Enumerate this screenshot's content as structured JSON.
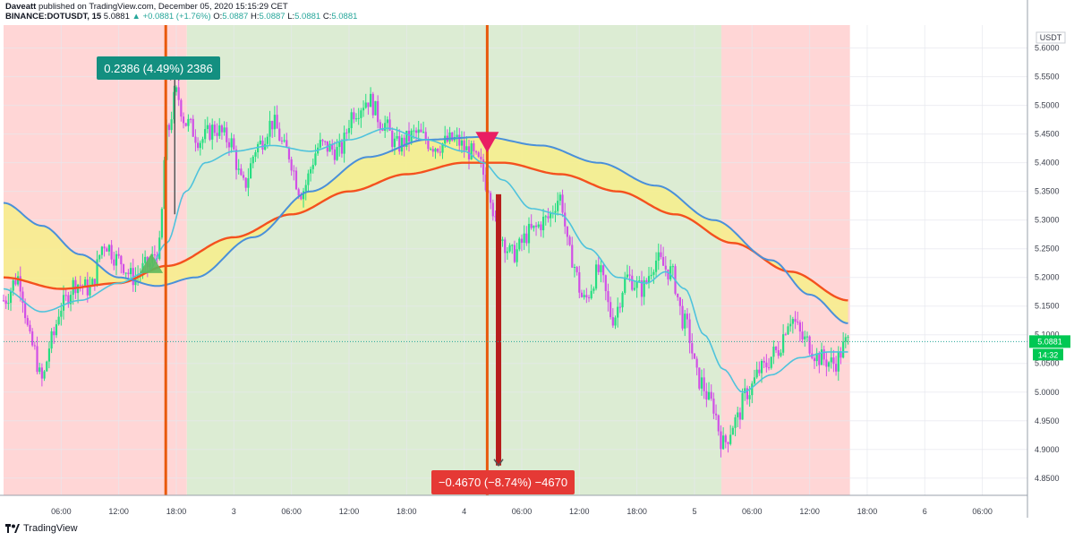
{
  "header": {
    "line1_prefix": "Daveatt",
    "line1_rest": " published on TradingView.com, December 05, 2020 15:15:29 CET",
    "symbol": "BINANCE:DOTUSDT, 15",
    "last": "5.0881",
    "change": "▲ +0.0881 (+1.76%)",
    "o_label": "O:",
    "o": "5.0887",
    "h_label": "H:",
    "h": "5.0887",
    "l_label": "L:",
    "l": "5.0881",
    "c_label": "C:",
    "c": "5.0881"
  },
  "footer": {
    "brand": "TradingView"
  },
  "colors": {
    "bull": "#26de81",
    "bear": "#d14fe6",
    "red_zone": "#ffd6d6",
    "green_zone": "#dcecd3",
    "ribbon_fill": "#f7ee8a",
    "ma_fast": "#4fc3dc",
    "ma_slow": "#f4511e",
    "ribbon_blue": "#4a90d9",
    "vline": "#e8590c",
    "long_box": "#138f80",
    "short_box": "#e53935"
  },
  "chart_data": {
    "type": "candlestick",
    "y_axis_unit": "USDT",
    "ylim": [
      4.82,
      5.64
    ],
    "price_ticks": [
      "5.6000",
      "5.5500",
      "5.5000",
      "5.4500",
      "5.4000",
      "5.3500",
      "5.3000",
      "5.2500",
      "5.2000",
      "5.1500",
      "5.1000",
      "5.0500",
      "5.0000",
      "4.9500",
      "4.9000",
      "4.8500"
    ],
    "price_tick_values": [
      5.6,
      5.55,
      5.5,
      5.45,
      5.4,
      5.35,
      5.3,
      5.25,
      5.2,
      5.15,
      5.1,
      5.05,
      5.0,
      4.95,
      4.9,
      4.85
    ],
    "time_ticks": [
      "06:00",
      "12:00",
      "18:00",
      "3",
      "06:00",
      "12:00",
      "18:00",
      "4",
      "06:00",
      "12:00",
      "18:00",
      "5",
      "06:00",
      "12:00",
      "18:00",
      "6",
      "06:00"
    ],
    "time_tick_hours": [
      6,
      12,
      18,
      24,
      30,
      36,
      42,
      48,
      54,
      60,
      66,
      72,
      78,
      84,
      90,
      96,
      102
    ],
    "x_start_hour": 0.0,
    "last_price_label": "5.0881",
    "countdown_label": "14:32",
    "zones": [
      {
        "kind": "red",
        "from_h": 0.0,
        "to_h": 19.1
      },
      {
        "kind": "green",
        "from_h": 19.1,
        "to_h": 74.8
      },
      {
        "kind": "red",
        "from_h": 74.8,
        "to_h": 88.2
      }
    ],
    "vertical_markers": [
      16.9,
      50.4
    ],
    "signals": [
      {
        "type": "buy",
        "h": 15.4,
        "price": 5.22
      },
      {
        "type": "sell",
        "h": 50.4,
        "price": 5.435
      }
    ],
    "price_path": [
      [
        0.0,
        5.16
      ],
      [
        1.5,
        5.2
      ],
      [
        3.0,
        5.08
      ],
      [
        4.0,
        5.02
      ],
      [
        5.0,
        5.09
      ],
      [
        6.0,
        5.15
      ],
      [
        7.5,
        5.19
      ],
      [
        9.0,
        5.18
      ],
      [
        10.5,
        5.26
      ],
      [
        12.0,
        5.23
      ],
      [
        13.5,
        5.2
      ],
      [
        15.0,
        5.22
      ],
      [
        16.2,
        5.25
      ],
      [
        17.0,
        5.45
      ],
      [
        18.0,
        5.52
      ],
      [
        19.0,
        5.47
      ],
      [
        20.5,
        5.44
      ],
      [
        22.0,
        5.46
      ],
      [
        23.5,
        5.44
      ],
      [
        25.0,
        5.36
      ],
      [
        26.5,
        5.43
      ],
      [
        28.0,
        5.47
      ],
      [
        29.5,
        5.42
      ],
      [
        31.0,
        5.35
      ],
      [
        33.0,
        5.43
      ],
      [
        35.0,
        5.42
      ],
      [
        36.5,
        5.49
      ],
      [
        38.0,
        5.51
      ],
      [
        39.5,
        5.47
      ],
      [
        41.0,
        5.43
      ],
      [
        43.0,
        5.45
      ],
      [
        45.0,
        5.43
      ],
      [
        47.0,
        5.44
      ],
      [
        48.5,
        5.42
      ],
      [
        49.5,
        5.4
      ],
      [
        50.5,
        5.36
      ],
      [
        51.5,
        5.28
      ],
      [
        53.0,
        5.24
      ],
      [
        55.0,
        5.28
      ],
      [
        56.5,
        5.3
      ],
      [
        58.0,
        5.34
      ],
      [
        59.0,
        5.24
      ],
      [
        60.5,
        5.16
      ],
      [
        62.0,
        5.21
      ],
      [
        63.5,
        5.13
      ],
      [
        65.0,
        5.2
      ],
      [
        66.5,
        5.18
      ],
      [
        68.0,
        5.23
      ],
      [
        69.5,
        5.21
      ],
      [
        71.0,
        5.12
      ],
      [
        72.5,
        5.02
      ],
      [
        73.8,
        4.98
      ],
      [
        75.0,
        4.91
      ],
      [
        76.3,
        4.95
      ],
      [
        77.5,
        5.0
      ],
      [
        79.0,
        5.04
      ],
      [
        80.5,
        5.07
      ],
      [
        82.0,
        5.13
      ],
      [
        83.5,
        5.09
      ],
      [
        85.0,
        5.06
      ],
      [
        86.5,
        5.05
      ],
      [
        88.0,
        5.088
      ]
    ],
    "ma_fast": [
      [
        0.0,
        5.18
      ],
      [
        4.0,
        5.14
      ],
      [
        8.0,
        5.16
      ],
      [
        12.0,
        5.19
      ],
      [
        15.0,
        5.21
      ],
      [
        17.0,
        5.26
      ],
      [
        19.0,
        5.35
      ],
      [
        21.0,
        5.4
      ],
      [
        24.0,
        5.42
      ],
      [
        28.0,
        5.43
      ],
      [
        32.0,
        5.42
      ],
      [
        36.0,
        5.44
      ],
      [
        40.0,
        5.46
      ],
      [
        44.0,
        5.44
      ],
      [
        48.0,
        5.42
      ],
      [
        50.0,
        5.4
      ],
      [
        52.0,
        5.37
      ],
      [
        55.0,
        5.32
      ],
      [
        58.0,
        5.31
      ],
      [
        61.0,
        5.25
      ],
      [
        64.0,
        5.2
      ],
      [
        67.0,
        5.19
      ],
      [
        69.0,
        5.21
      ],
      [
        71.0,
        5.18
      ],
      [
        73.0,
        5.1
      ],
      [
        75.0,
        5.04
      ],
      [
        77.0,
        5.0
      ],
      [
        80.0,
        5.03
      ],
      [
        83.0,
        5.06
      ],
      [
        86.0,
        5.07
      ],
      [
        88.0,
        5.07
      ]
    ],
    "ribbon_slow": [
      [
        0.0,
        5.2
      ],
      [
        6.0,
        5.18
      ],
      [
        12.0,
        5.19
      ],
      [
        17.0,
        5.22
      ],
      [
        24.0,
        5.27
      ],
      [
        30.0,
        5.31
      ],
      [
        36.0,
        5.35
      ],
      [
        42.0,
        5.38
      ],
      [
        48.0,
        5.4
      ],
      [
        52.0,
        5.4
      ],
      [
        58.0,
        5.38
      ],
      [
        64.0,
        5.35
      ],
      [
        70.0,
        5.31
      ],
      [
        76.0,
        5.26
      ],
      [
        82.0,
        5.21
      ],
      [
        88.0,
        5.16
      ]
    ],
    "ribbon_blue": [
      [
        0.0,
        5.33
      ],
      [
        4.0,
        5.29
      ],
      [
        8.0,
        5.24
      ],
      [
        12.0,
        5.2
      ],
      [
        16.0,
        5.185
      ],
      [
        20.0,
        5.2
      ],
      [
        26.0,
        5.27
      ],
      [
        32.0,
        5.35
      ],
      [
        38.0,
        5.41
      ],
      [
        44.0,
        5.44
      ],
      [
        50.0,
        5.445
      ],
      [
        56.0,
        5.43
      ],
      [
        62.0,
        5.4
      ],
      [
        68.0,
        5.36
      ],
      [
        74.0,
        5.3
      ],
      [
        80.0,
        5.23
      ],
      [
        84.0,
        5.17
      ],
      [
        88.0,
        5.12
      ]
    ],
    "measure_long": {
      "label": "0.2386 (4.49%) 2386",
      "h": 17.0,
      "from": 5.31,
      "to": 5.555
    },
    "measure_short": {
      "label": "−0.4670 (−8.74%) −4670",
      "h": 51.3,
      "from": 5.345,
      "to": 4.872
    }
  }
}
